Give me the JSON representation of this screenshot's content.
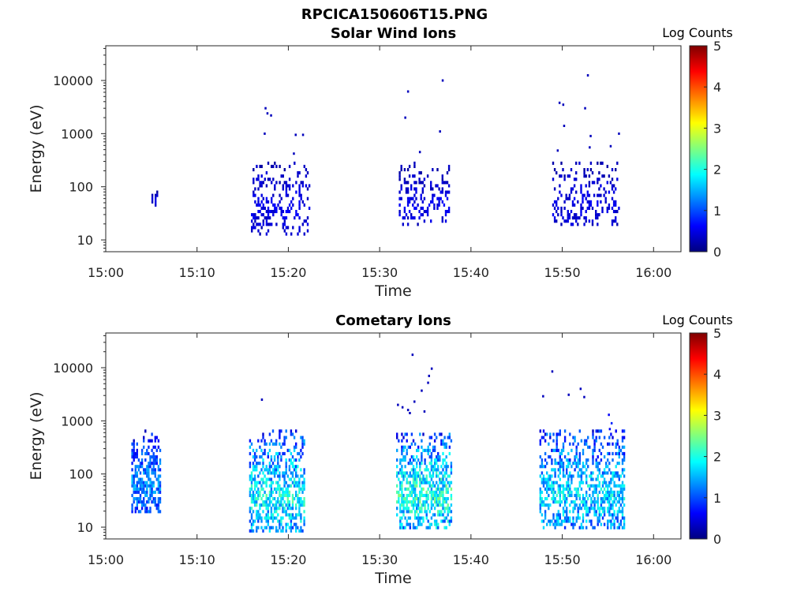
{
  "figure_title": "RPCICA150606T15.PNG",
  "colorbar_colors": [
    "#00007f",
    "#0000ff",
    "#007fff",
    "#00ffff",
    "#7fff7f",
    "#ffff00",
    "#ff7f00",
    "#ff0000",
    "#7f0000"
  ],
  "chart_data": [
    {
      "type": "heatmap",
      "title": "Solar Wind Ions",
      "xlabel": "Time",
      "ylabel": "Energy (eV)",
      "x_range_minutes": [
        0,
        63
      ],
      "x_ticks": [
        {
          "minute": 0,
          "label": "15:00"
        },
        {
          "minute": 10,
          "label": "15:10"
        },
        {
          "minute": 20,
          "label": "15:20"
        },
        {
          "minute": 30,
          "label": "15:30"
        },
        {
          "minute": 40,
          "label": "15:40"
        },
        {
          "minute": 50,
          "label": "15:50"
        },
        {
          "minute": 60,
          "label": "16:00"
        }
      ],
      "y_scale": "log",
      "y_range_eV": [
        6,
        45000
      ],
      "y_ticks": [
        {
          "value": 10,
          "label": "10"
        },
        {
          "value": 100,
          "label": "100"
        },
        {
          "value": 1000,
          "label": "1000"
        },
        {
          "value": 10000,
          "label": "10000"
        }
      ],
      "colorbar": {
        "label": "Log Counts",
        "range": [
          0,
          5
        ],
        "ticks": [
          "0",
          "1",
          "2",
          "3",
          "4",
          "5"
        ]
      },
      "clusters": [
        {
          "t_start": 5.0,
          "t_end": 5.6,
          "e_min": 38,
          "e_max": 85,
          "level": 0.3,
          "density": 0.55,
          "seed": 11
        },
        {
          "t_start": 15.9,
          "t_end": 22.2,
          "e_min": 12,
          "e_max": 320,
          "level": 0.35,
          "density": 0.32,
          "seed": 12
        },
        {
          "t_start": 32.1,
          "t_end": 37.5,
          "e_min": 17,
          "e_max": 260,
          "level": 0.35,
          "density": 0.3,
          "seed": 13
        },
        {
          "t_start": 48.9,
          "t_end": 56.2,
          "e_min": 18,
          "e_max": 260,
          "level": 0.35,
          "density": 0.28,
          "seed": 14
        }
      ],
      "points": [
        {
          "t": 17.4,
          "e": 3000,
          "level": 0.3
        },
        {
          "t": 17.6,
          "e": 2400,
          "level": 0.3
        },
        {
          "t": 18.0,
          "e": 2200,
          "level": 0.3
        },
        {
          "t": 17.3,
          "e": 1000,
          "level": 0.3
        },
        {
          "t": 20.7,
          "e": 950,
          "level": 0.3
        },
        {
          "t": 21.5,
          "e": 950,
          "level": 0.3
        },
        {
          "t": 20.5,
          "e": 420,
          "level": 0.3
        },
        {
          "t": 32.7,
          "e": 2000,
          "level": 0.3
        },
        {
          "t": 33.0,
          "e": 6200,
          "level": 0.3
        },
        {
          "t": 36.8,
          "e": 10000,
          "level": 0.3
        },
        {
          "t": 36.5,
          "e": 1100,
          "level": 0.3
        },
        {
          "t": 34.3,
          "e": 450,
          "level": 0.3
        },
        {
          "t": 49.6,
          "e": 3800,
          "level": 0.3
        },
        {
          "t": 50.0,
          "e": 3500,
          "level": 0.3
        },
        {
          "t": 52.4,
          "e": 3000,
          "level": 0.3
        },
        {
          "t": 52.7,
          "e": 12500,
          "level": 0.3
        },
        {
          "t": 50.1,
          "e": 1400,
          "level": 0.3
        },
        {
          "t": 53.0,
          "e": 900,
          "level": 0.3
        },
        {
          "t": 52.9,
          "e": 550,
          "level": 0.3
        },
        {
          "t": 56.1,
          "e": 1000,
          "level": 0.3
        },
        {
          "t": 55.2,
          "e": 580,
          "level": 0.3
        },
        {
          "t": 49.4,
          "e": 480,
          "level": 0.3
        }
      ]
    },
    {
      "type": "heatmap",
      "title": "Cometary Ions",
      "xlabel": "Time",
      "ylabel": "Energy (eV)",
      "x_range_minutes": [
        0,
        63
      ],
      "x_ticks": [
        {
          "minute": 0,
          "label": "15:00"
        },
        {
          "minute": 10,
          "label": "15:10"
        },
        {
          "minute": 20,
          "label": "15:20"
        },
        {
          "minute": 30,
          "label": "15:30"
        },
        {
          "minute": 40,
          "label": "15:40"
        },
        {
          "minute": 50,
          "label": "15:50"
        },
        {
          "minute": 60,
          "label": "16:00"
        }
      ],
      "y_scale": "log",
      "y_range_eV": [
        6,
        45000
      ],
      "y_ticks": [
        {
          "value": 10,
          "label": "10"
        },
        {
          "value": 100,
          "label": "100"
        },
        {
          "value": 1000,
          "label": "1000"
        },
        {
          "value": 10000,
          "label": "10000"
        }
      ],
      "colorbar": {
        "label": "Log Counts",
        "range": [
          0,
          5
        ],
        "ticks": [
          "0",
          "1",
          "2",
          "3",
          "4",
          "5"
        ]
      },
      "clusters": [
        {
          "t_start": 2.8,
          "t_end": 5.9,
          "e_min": 17,
          "e_max": 600,
          "level": 0.9,
          "density": 0.65,
          "seed": 21
        },
        {
          "t_start": 15.7,
          "t_end": 21.8,
          "e_min": 7,
          "e_max": 600,
          "level": 1.3,
          "density": 0.6,
          "seed": 22
        },
        {
          "t_start": 31.8,
          "t_end": 37.8,
          "e_min": 9,
          "e_max": 560,
          "level": 1.4,
          "density": 0.62,
          "seed": 23
        },
        {
          "t_start": 47.5,
          "t_end": 56.7,
          "e_min": 9,
          "e_max": 600,
          "level": 1.2,
          "density": 0.55,
          "seed": 24
        }
      ],
      "points": [
        {
          "t": 17.0,
          "e": 2500,
          "level": 0.3
        },
        {
          "t": 31.9,
          "e": 2000,
          "level": 0.3
        },
        {
          "t": 32.4,
          "e": 1800,
          "level": 0.3
        },
        {
          "t": 33.0,
          "e": 1600,
          "level": 0.3
        },
        {
          "t": 33.5,
          "e": 17500,
          "level": 0.3
        },
        {
          "t": 33.7,
          "e": 2300,
          "level": 0.3
        },
        {
          "t": 34.5,
          "e": 3700,
          "level": 0.3
        },
        {
          "t": 35.2,
          "e": 5200,
          "level": 0.3
        },
        {
          "t": 35.6,
          "e": 9600,
          "level": 0.3
        },
        {
          "t": 35.3,
          "e": 7000,
          "level": 0.3
        },
        {
          "t": 34.8,
          "e": 1500,
          "level": 0.3
        },
        {
          "t": 33.2,
          "e": 1400,
          "level": 0.3
        },
        {
          "t": 48.8,
          "e": 8500,
          "level": 0.3
        },
        {
          "t": 47.8,
          "e": 2900,
          "level": 0.3
        },
        {
          "t": 50.6,
          "e": 3100,
          "level": 0.3
        },
        {
          "t": 51.9,
          "e": 4000,
          "level": 0.3
        },
        {
          "t": 52.3,
          "e": 2800,
          "level": 0.3
        },
        {
          "t": 55.0,
          "e": 1300,
          "level": 0.6
        },
        {
          "t": 55.3,
          "e": 900,
          "level": 0.8
        },
        {
          "t": 55.1,
          "e": 700,
          "level": 0.6
        }
      ]
    }
  ]
}
